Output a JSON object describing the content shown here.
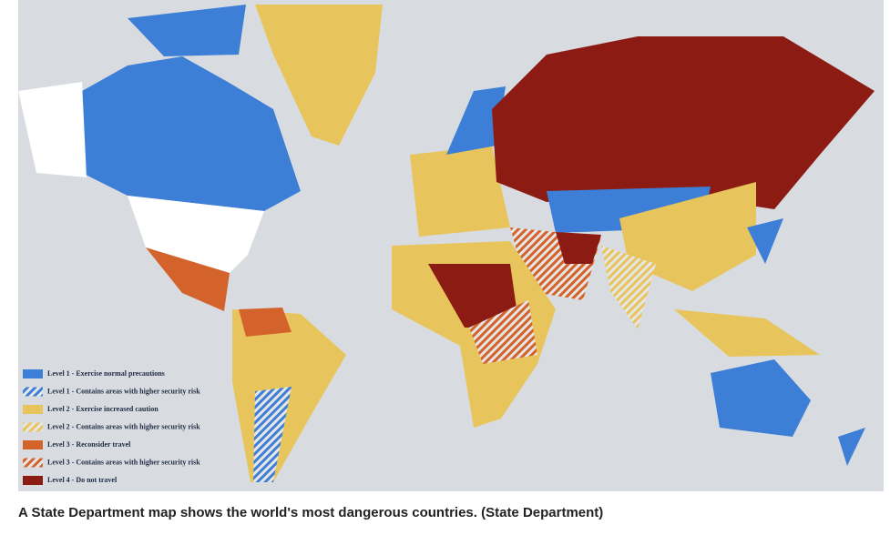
{
  "legend": {
    "items": [
      {
        "label": "Level 1 - Exercise normal precautions",
        "color": "#3d7fd6",
        "hatched": false
      },
      {
        "label": "Level 1 - Contains areas with higher security risk",
        "color": "#3d7fd6",
        "hatched": true
      },
      {
        "label": "Level 2 - Exercise increased caution",
        "color": "#e8c55c",
        "hatched": false
      },
      {
        "label": "Level 2 - Contains areas with higher security risk",
        "color": "#e8c55c",
        "hatched": true
      },
      {
        "label": "Level 3 - Reconsider travel",
        "color": "#d4622b",
        "hatched": false
      },
      {
        "label": "Level 3 - Contains areas with higher security risk",
        "color": "#d4622b",
        "hatched": true
      },
      {
        "label": "Level 4 - Do not travel",
        "color": "#8c1b13",
        "hatched": false
      }
    ]
  },
  "caption": "A State Department map shows the world's most dangerous countries.  (State Department)"
}
